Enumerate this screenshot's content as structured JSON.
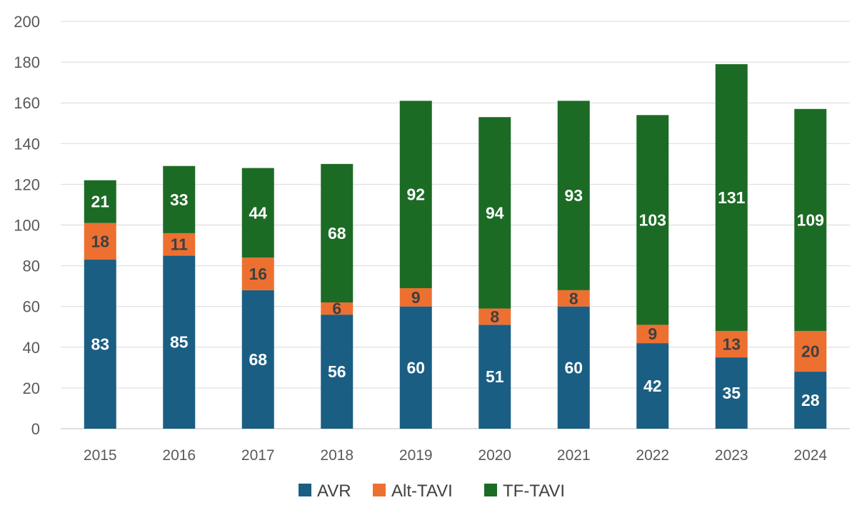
{
  "chart_data": {
    "type": "bar",
    "stacked": true,
    "categories": [
      "2015",
      "2016",
      "2017",
      "2018",
      "2019",
      "2020",
      "2021",
      "2022",
      "2023",
      "2024"
    ],
    "series": [
      {
        "name": "AVR",
        "values": [
          83,
          85,
          68,
          56,
          60,
          51,
          60,
          42,
          35,
          28
        ],
        "color": "#1a5e84",
        "label_color": "#ffffff"
      },
      {
        "name": "Alt-TAVI",
        "values": [
          18,
          11,
          16,
          6,
          9,
          8,
          8,
          9,
          13,
          20
        ],
        "color": "#ed7031",
        "label_color": "#404040"
      },
      {
        "name": "TF-TAVI",
        "values": [
          21,
          33,
          44,
          68,
          92,
          94,
          93,
          103,
          131,
          109
        ],
        "color": "#1c6b25",
        "label_color": "#ffffff"
      }
    ],
    "ylim": [
      0,
      200
    ],
    "yticks": [
      "0",
      "20",
      "40",
      "60",
      "80",
      "100",
      "120",
      "140",
      "160",
      "180",
      "200"
    ],
    "grid": true,
    "legend": "bottom",
    "title": "",
    "xlabel": "",
    "ylabel": "",
    "colors": {
      "grid": "#d9d9d9",
      "axis": "#bfbfbf",
      "tick_text": "#595959"
    }
  }
}
